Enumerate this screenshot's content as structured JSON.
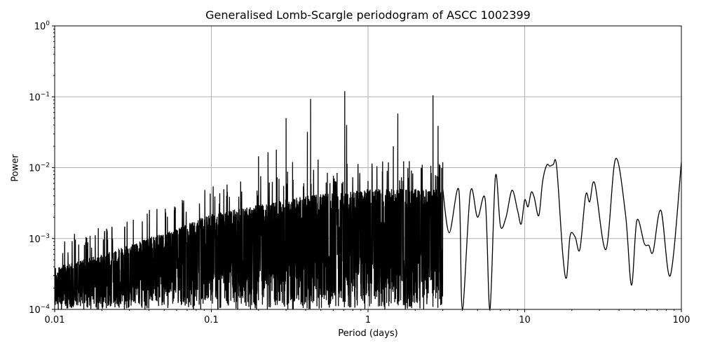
{
  "chart_data": {
    "type": "line",
    "title": "Generalised Lomb-Scargle periodogram of ASCC 1002399",
    "xlabel": "Period (days)",
    "ylabel": "Power",
    "xscale": "log",
    "yscale": "log",
    "xlim": [
      0.01,
      100
    ],
    "ylim": [
      0.0001,
      1
    ],
    "grid": true,
    "x_ticks": [
      "0.01",
      "0.1",
      "1",
      "10",
      "100"
    ],
    "y_ticks": [
      "10^0",
      "10^-1",
      "10^-2",
      "10^-3",
      "10^-4"
    ],
    "line_color": "#000000",
    "grid_color": "#b0b0b0",
    "noise_envelope": [
      {
        "period": 0.01,
        "power": 0.0004
      },
      {
        "period": 0.02,
        "power": 0.0006
      },
      {
        "period": 0.05,
        "power": 0.0012
      },
      {
        "period": 0.1,
        "power": 0.0022
      },
      {
        "period": 0.2,
        "power": 0.003
      },
      {
        "period": 0.4,
        "power": 0.004
      },
      {
        "period": 1.0,
        "power": 0.005
      },
      {
        "period": 3.0,
        "power": 0.005
      }
    ],
    "peaks": [
      {
        "period": 0.2,
        "power": 0.0145
      },
      {
        "period": 0.23,
        "power": 0.0165
      },
      {
        "period": 0.26,
        "power": 0.018
      },
      {
        "period": 0.3,
        "power": 0.05
      },
      {
        "period": 0.33,
        "power": 0.012
      },
      {
        "period": 0.41,
        "power": 0.032
      },
      {
        "period": 0.43,
        "power": 0.093
      },
      {
        "period": 0.48,
        "power": 0.013
      },
      {
        "period": 0.71,
        "power": 0.12
      },
      {
        "period": 0.73,
        "power": 0.04
      },
      {
        "period": 1.0,
        "power": 0.0065
      },
      {
        "period": 1.45,
        "power": 0.02
      },
      {
        "period": 1.55,
        "power": 0.058
      },
      {
        "period": 2.6,
        "power": 0.105
      },
      {
        "period": 2.8,
        "power": 0.039
      }
    ],
    "smooth_tail": [
      {
        "period": 3.0,
        "power": 0.005
      },
      {
        "period": 3.3,
        "power": 0.0012
      },
      {
        "period": 3.8,
        "power": 0.0048
      },
      {
        "period": 4.0,
        "power": 0.0001
      },
      {
        "period": 4.5,
        "power": 0.0045
      },
      {
        "period": 5.0,
        "power": 0.002
      },
      {
        "period": 5.6,
        "power": 0.0035
      },
      {
        "period": 6.0,
        "power": 0.0001
      },
      {
        "period": 6.5,
        "power": 0.0075
      },
      {
        "period": 7.0,
        "power": 0.0015
      },
      {
        "period": 7.6,
        "power": 0.002
      },
      {
        "period": 8.3,
        "power": 0.0048
      },
      {
        "period": 9.0,
        "power": 0.0025
      },
      {
        "period": 9.5,
        "power": 0.0016
      },
      {
        "period": 10.0,
        "power": 0.0035
      },
      {
        "period": 10.5,
        "power": 0.0028
      },
      {
        "period": 11.0,
        "power": 0.0045
      },
      {
        "period": 11.5,
        "power": 0.0038
      },
      {
        "period": 12.3,
        "power": 0.0021
      },
      {
        "period": 13.0,
        "power": 0.0063
      },
      {
        "period": 13.8,
        "power": 0.0108
      },
      {
        "period": 14.5,
        "power": 0.0105
      },
      {
        "period": 15.2,
        "power": 0.011
      },
      {
        "period": 16.0,
        "power": 0.0103
      },
      {
        "period": 17.5,
        "power": 0.0006
      },
      {
        "period": 18.5,
        "power": 0.00028
      },
      {
        "period": 19.5,
        "power": 0.0011
      },
      {
        "period": 21.0,
        "power": 0.00105
      },
      {
        "period": 22.5,
        "power": 0.0007
      },
      {
        "period": 24.5,
        "power": 0.0041
      },
      {
        "period": 26.0,
        "power": 0.0033
      },
      {
        "period": 28.0,
        "power": 0.006
      },
      {
        "period": 33.0,
        "power": 0.0007
      },
      {
        "period": 38.0,
        "power": 0.0133
      },
      {
        "period": 44.0,
        "power": 0.0022
      },
      {
        "period": 48.0,
        "power": 0.00022
      },
      {
        "period": 52.0,
        "power": 0.0018
      },
      {
        "period": 58.0,
        "power": 0.00085
      },
      {
        "period": 62.0,
        "power": 0.0008
      },
      {
        "period": 66.0,
        "power": 0.00065
      },
      {
        "period": 74.0,
        "power": 0.0025
      },
      {
        "period": 85.0,
        "power": 0.0003
      },
      {
        "period": 100.0,
        "power": 0.012
      }
    ]
  }
}
